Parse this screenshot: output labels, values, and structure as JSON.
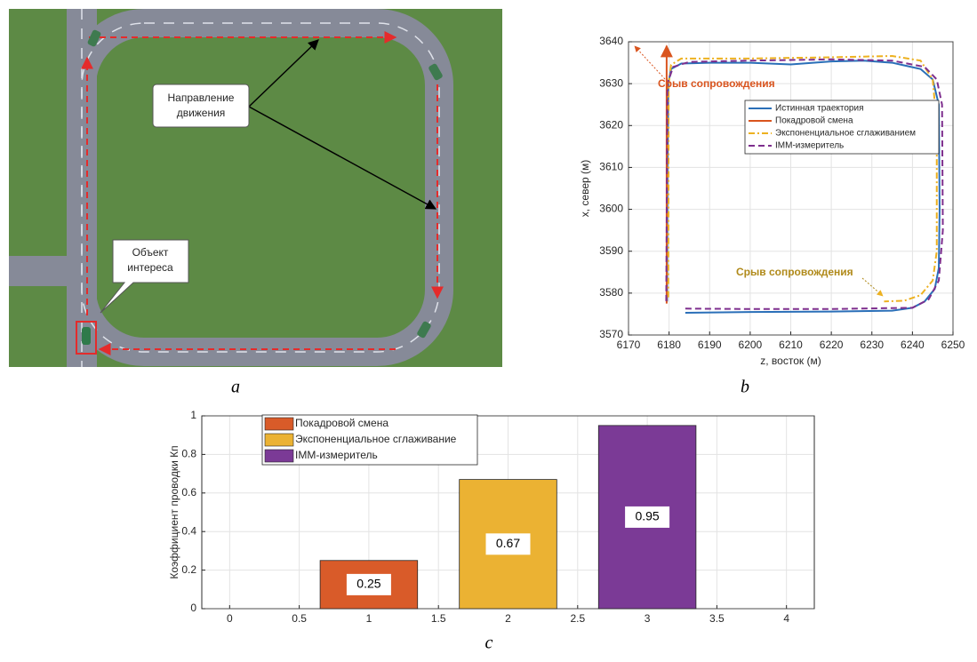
{
  "illustration": {
    "direction_label": [
      "Направление",
      "движения"
    ],
    "object_label": [
      "Объект",
      "интереса"
    ]
  },
  "panel_labels": [
    "a",
    "b",
    "c"
  ],
  "chart_data": [
    {
      "type": "line",
      "xlabel": "z, восток (м)",
      "ylabel": "x, север (м)",
      "xlim": [
        6170,
        6250
      ],
      "xticks": [
        6170,
        6180,
        6190,
        6200,
        6210,
        6220,
        6230,
        6240,
        6250
      ],
      "ylim": [
        3570,
        3640
      ],
      "yticks": [
        3570,
        3580,
        3590,
        3600,
        3610,
        3620,
        3630,
        3640
      ],
      "grid": true,
      "legend": "upper right",
      "series": [
        {
          "name": "Истинная траектория",
          "color": "#2a6fb8",
          "style": "solid",
          "x": [
            6184,
            6200,
            6220,
            6235,
            6240,
            6243,
            6245.5,
            6246.5,
            6246.7,
            6246.5,
            6245,
            6242,
            6235,
            6228,
            6220,
            6210,
            6200,
            6190,
            6183,
            6180.5,
            6179.8,
            6179.6,
            6179.5
          ],
          "values": [
            3575.3,
            3575.5,
            3575.6,
            3575.8,
            3576.5,
            3578,
            3581,
            3586,
            3600,
            3625,
            3631,
            3633.5,
            3635,
            3635.5,
            3635.3,
            3634.6,
            3635,
            3635,
            3634.8,
            3633.5,
            3630,
            3610,
            3578
          ]
        },
        {
          "name": "Покадровой смена",
          "color": "#d9541e",
          "style": "solid",
          "x": [
            6179.4,
            6179.4
          ],
          "values": [
            3577.5,
            3639
          ]
        },
        {
          "name": "Экспоненциальное сглаживанием",
          "color": "#edb120",
          "style": "dashdot",
          "x": [
            6179.8,
            6179.9,
            6180.5,
            6183,
            6200,
            6220,
            6235,
            6242,
            6245,
            6246,
            6246,
            6245,
            6242,
            6238,
            6233
          ],
          "values": [
            3579,
            3630,
            3634.5,
            3636,
            3636,
            3636.3,
            3636.6,
            3635.5,
            3631,
            3620,
            3590,
            3583,
            3579.5,
            3578.2,
            3578
          ]
        },
        {
          "name": "IMM-измеритель",
          "color": "#7e2f8e",
          "style": "dashed",
          "x": [
            6184,
            6200,
            6220,
            6240,
            6244,
            6246.5,
            6247.5,
            6247.3,
            6246,
            6243,
            6235,
            6220,
            6200,
            6185,
            6181,
            6179.6,
            6179.3
          ],
          "values": [
            3576.3,
            3576.2,
            3576.2,
            3576.5,
            3578.5,
            3583,
            3595,
            3625,
            3631,
            3634,
            3635.5,
            3635.8,
            3635.5,
            3635.2,
            3634,
            3630,
            3578
          ]
        }
      ],
      "annotations": [
        {
          "text": "Срыв сопровождения",
          "color": "#d9541e"
        },
        {
          "text": "Срыв сопровождения",
          "color": "#b08a1a"
        }
      ]
    },
    {
      "type": "bar",
      "ylabel": "Коэффициент проводки Кп",
      "xlim": [
        -0.2,
        4.2
      ],
      "xticks": [
        0,
        0.5,
        1,
        1.5,
        2,
        2.5,
        3,
        3.5,
        4
      ],
      "ylim": [
        0,
        1
      ],
      "yticks": [
        0,
        0.2,
        0.4,
        0.6,
        0.8,
        1
      ],
      "grid": true,
      "legend": "upper left",
      "series": [
        {
          "name": "Покадровой смена",
          "color": "#d95b29",
          "x": [
            1
          ],
          "values": [
            0.25
          ]
        },
        {
          "name": "Экспоненциальное сглаживание",
          "color": "#ebb233",
          "x": [
            2
          ],
          "values": [
            0.67
          ]
        },
        {
          "name": "IMM-измеритель",
          "color": "#7b3a96",
          "x": [
            3
          ],
          "values": [
            0.95
          ]
        }
      ]
    }
  ]
}
